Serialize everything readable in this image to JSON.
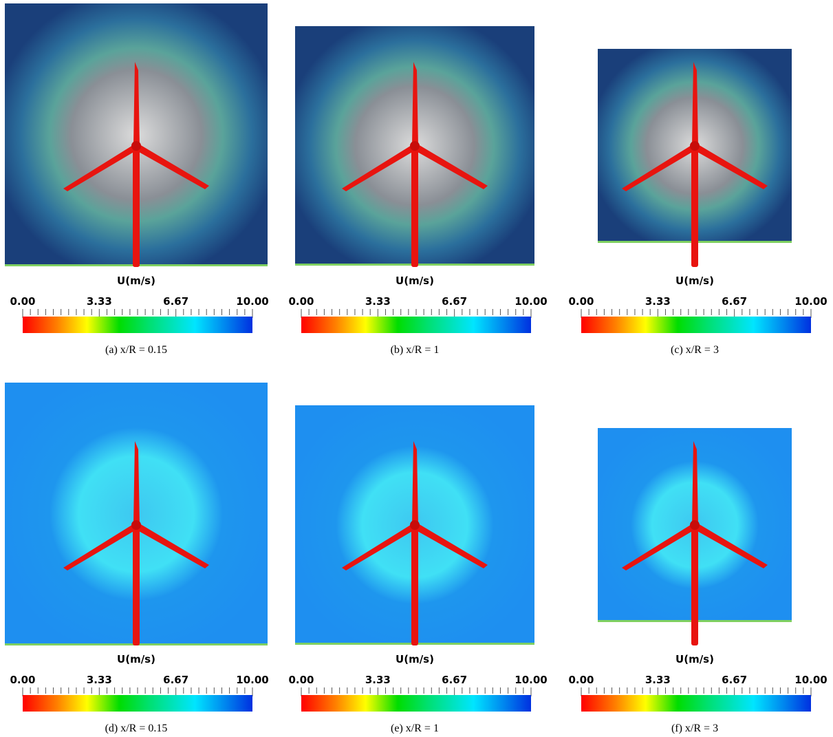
{
  "panels": [
    {
      "colorbar": {
        "title": "U(m/s)",
        "ticks": [
          "0.00",
          "3.33",
          "6.67",
          "10.00"
        ]
      },
      "caption": "(a)  x/R = 0.15"
    },
    {
      "colorbar": {
        "title": "U(m/s)",
        "ticks": [
          "0.00",
          "3.33",
          "6.67",
          "10.00"
        ]
      },
      "caption": "(b)  x/R = 1"
    },
    {
      "colorbar": {
        "title": "U(m/s)",
        "ticks": [
          "0.00",
          "3.33",
          "6.67",
          "10.00"
        ]
      },
      "caption": "(c)  x/R = 3"
    },
    {
      "colorbar": {
        "title": "U(m/s)",
        "ticks": [
          "0.00",
          "3.33",
          "6.67",
          "10.00"
        ]
      },
      "caption": "(d)  x/R = 0.15"
    },
    {
      "colorbar": {
        "title": "U(m/s)",
        "ticks": [
          "0.00",
          "3.33",
          "6.67",
          "10.00"
        ]
      },
      "caption": "(e)  x/R = 1"
    },
    {
      "colorbar": {
        "title": "U(m/s)",
        "ticks": [
          "0.00",
          "3.33",
          "6.67",
          "10.00"
        ]
      },
      "caption": "(f)  x/R = 3"
    }
  ]
}
